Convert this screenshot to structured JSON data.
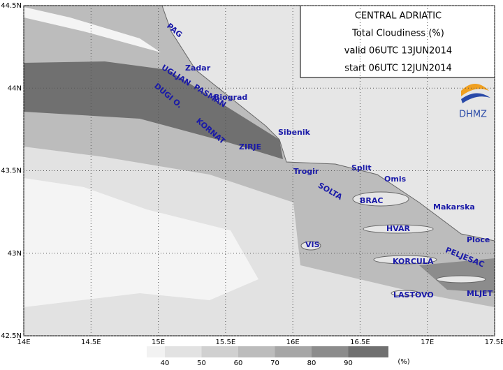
{
  "header": {
    "title": "CENTRAL ADRIATIC",
    "subtitle": "Total Cloudiness (%)",
    "valid": "valid 06UTC 13JUN2014",
    "start": "start 06UTC 12JUN2014",
    "logo": "DHMZ"
  },
  "map": {
    "xlim": [
      14,
      17.5
    ],
    "ylim": [
      42.5,
      44.5
    ],
    "xticks": [
      {
        "value": 14,
        "label": "14E"
      },
      {
        "value": 14.5,
        "label": "14.5E"
      },
      {
        "value": 15,
        "label": "15E"
      },
      {
        "value": 15.5,
        "label": "15.5E"
      },
      {
        "value": 16,
        "label": "16E"
      },
      {
        "value": 16.5,
        "label": "16.5E"
      },
      {
        "value": 17,
        "label": "17E"
      },
      {
        "value": 17.5,
        "label": "17.5E"
      }
    ],
    "yticks": [
      {
        "value": 42.5,
        "label": "42.5N"
      },
      {
        "value": 43,
        "label": "43N"
      },
      {
        "value": 43.5,
        "label": "43.5N"
      },
      {
        "value": 44,
        "label": "44N"
      },
      {
        "value": 44.5,
        "label": "44.5N"
      }
    ],
    "places": [
      "PAG",
      "Zadar",
      "UGLJAN",
      "PASMAN",
      "Biograd",
      "DUGI O.",
      "KORNAT",
      "Sibenik",
      "ZIRJE",
      "Trogir",
      "Split",
      "Omis",
      "SOLTA",
      "BRAC",
      "Makarska",
      "HVAR",
      "Ploce",
      "VIS",
      "PELJESAC",
      "KORCULA",
      "LASTOVO",
      "MLJET"
    ]
  },
  "legend": {
    "levels": [
      40,
      50,
      60,
      70,
      80,
      90
    ],
    "unit": "(%)",
    "colors": [
      "#f2f2f2",
      "#e2e2e2",
      "#d0d0d0",
      "#bcbcbc",
      "#a6a6a6",
      "#8c8c8c",
      "#707070"
    ]
  }
}
